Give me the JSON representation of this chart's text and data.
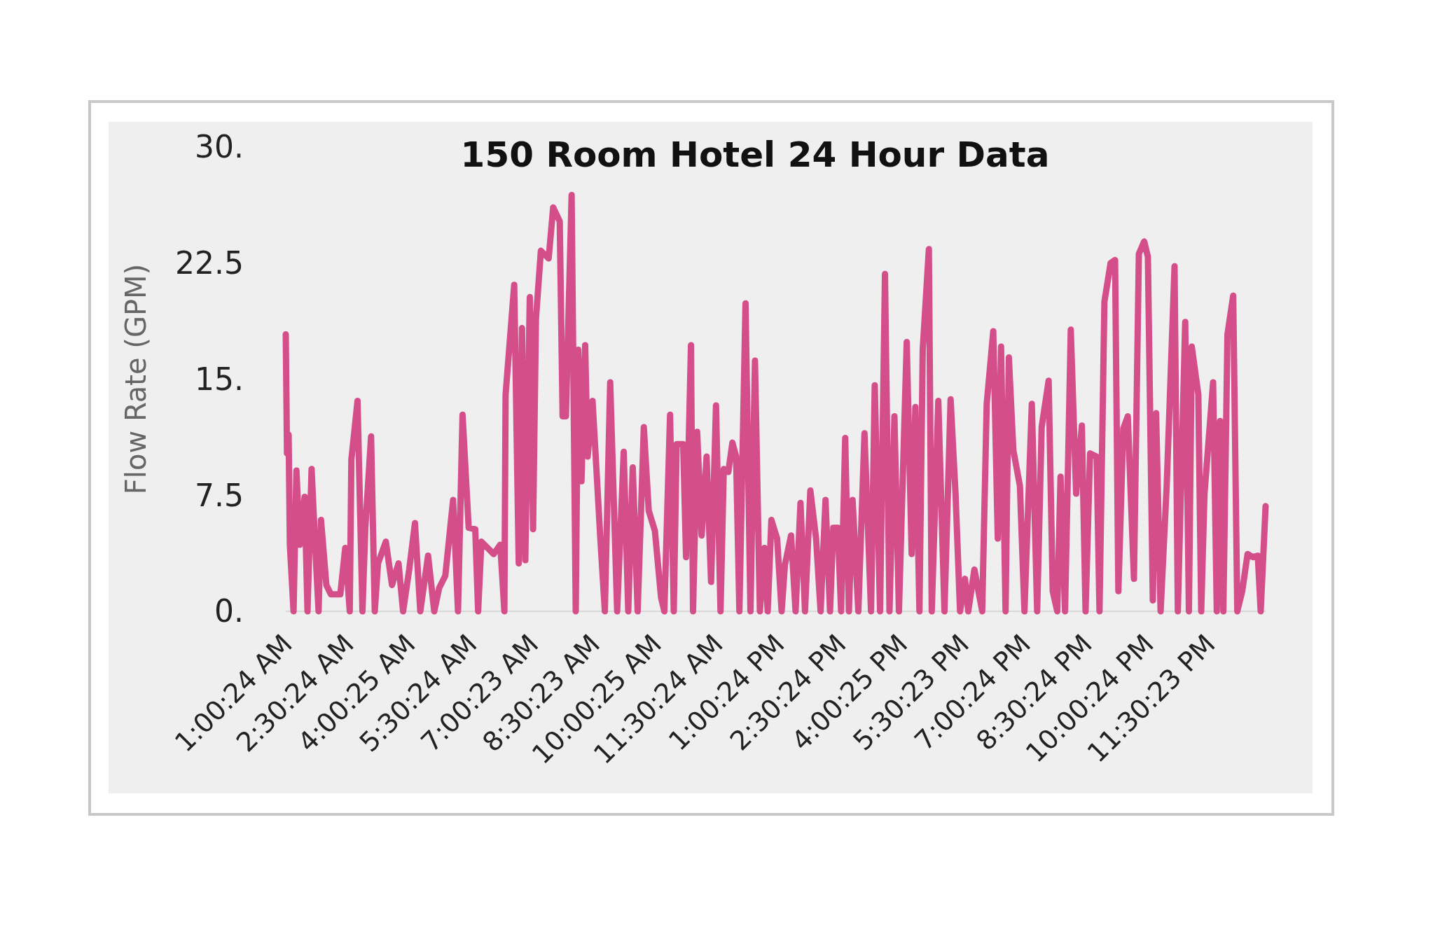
{
  "chart_data": {
    "type": "line",
    "title": "150 Room Hotel 24 Hour Data",
    "ylabel": "Flow Rate (GPM)",
    "xlim": [
      0.97,
      24.86
    ],
    "ylim": [
      0,
      30
    ],
    "xticks": [
      {
        "value": 1.0067,
        "label": "1:00:24 AM"
      },
      {
        "value": 2.5067,
        "label": "2:30:24 AM"
      },
      {
        "value": 4.0069,
        "label": "4:00:25 AM"
      },
      {
        "value": 5.5067,
        "label": "5:30:24 AM"
      },
      {
        "value": 7.0064,
        "label": "7:00:23 AM"
      },
      {
        "value": 8.5064,
        "label": "8:30:23 AM"
      },
      {
        "value": 10.0069,
        "label": "10:00:25 AM"
      },
      {
        "value": 11.5067,
        "label": "11:30:24 AM"
      },
      {
        "value": 13.0067,
        "label": "1:00:24 PM"
      },
      {
        "value": 14.5067,
        "label": "2:30:24 PM"
      },
      {
        "value": 16.0069,
        "label": "4:00:25 PM"
      },
      {
        "value": 17.5064,
        "label": "5:30:23 PM"
      },
      {
        "value": 19.0067,
        "label": "7:00:24 PM"
      },
      {
        "value": 20.5067,
        "label": "8:30:24 PM"
      },
      {
        "value": 22.0067,
        "label": "10:00:24 PM"
      },
      {
        "value": 23.5064,
        "label": "11:30:23 PM"
      }
    ],
    "yticks": [
      {
        "value": 0,
        "label": "0."
      },
      7.5,
      {
        "value": 15,
        "label": "15."
      },
      22.5,
      {
        "value": 30,
        "label": "30."
      }
    ],
    "series": [
      {
        "color": "#d44f8a",
        "x": [
          0.97,
          1.0,
          1.04,
          1.07,
          1.16,
          1.23,
          1.31,
          1.43,
          1.5,
          1.6,
          1.69,
          1.77,
          1.83,
          1.96,
          2.07,
          2.3,
          2.42,
          2.53,
          2.57,
          2.72,
          2.84,
          2.91,
          3.05,
          3.14,
          3.22,
          3.41,
          3.56,
          3.72,
          3.83,
          3.98,
          4.12,
          4.25,
          4.44,
          4.59,
          4.71,
          4.86,
          5.05,
          5.17,
          5.28,
          5.43,
          5.59,
          5.66,
          5.74,
          6.04,
          6.2,
          6.3,
          6.33,
          6.54,
          6.65,
          6.73,
          6.81,
          6.92,
          7.0,
          7.07,
          7.19,
          7.38,
          7.49,
          7.65,
          7.72,
          7.8,
          7.94,
          8.04,
          8.1,
          8.18,
          8.27,
          8.33,
          8.45,
          8.64,
          8.75,
          8.88,
          9.05,
          9.21,
          9.32,
          9.43,
          9.55,
          9.7,
          9.82,
          9.97,
          10.12,
          10.2,
          10.34,
          10.43,
          10.5,
          10.66,
          10.73,
          10.85,
          10.9,
          11.0,
          11.11,
          11.23,
          11.34,
          11.46,
          11.57,
          11.65,
          11.76,
          11.86,
          11.95,
          12.03,
          12.18,
          12.3,
          12.41,
          12.53,
          12.64,
          12.72,
          12.81,
          12.95,
          13.06,
          13.14,
          13.29,
          13.4,
          13.52,
          13.63,
          13.76,
          13.9,
          14.01,
          14.13,
          14.24,
          14.32,
          14.43,
          14.51,
          14.61,
          14.7,
          14.79,
          14.93,
          15.08,
          15.24,
          15.33,
          15.46,
          15.58,
          15.69,
          15.81,
          15.92,
          16.11,
          16.23,
          16.32,
          16.42,
          16.5,
          16.65,
          16.72,
          16.88,
          17.03,
          17.18,
          17.3,
          17.41,
          17.53,
          17.61,
          17.76,
          17.95,
          18.06,
          18.22,
          18.33,
          18.41,
          18.52,
          18.6,
          18.71,
          18.87,
          18.98,
          19.16,
          19.29,
          19.4,
          19.57,
          19.67,
          19.78,
          19.86,
          19.97,
          20.11,
          20.24,
          20.38,
          20.47,
          20.58,
          20.74,
          20.81,
          20.93,
          21.08,
          21.19,
          21.27,
          21.39,
          21.5,
          21.65,
          21.77,
          21.9,
          21.99,
          22.11,
          22.19,
          22.3,
          22.45,
          22.64,
          22.72,
          22.9,
          22.99,
          23.06,
          23.22,
          23.29,
          23.37,
          23.58,
          23.67,
          23.75,
          23.83,
          23.93,
          24.07,
          24.17,
          24.29,
          24.42,
          24.55,
          24.67,
          24.74,
          24.86
        ],
        "values": [
          17.9,
          10.2,
          11.4,
          4.3,
          0,
          9.1,
          4.3,
          7.4,
          0,
          9.2,
          4.1,
          0,
          5.9,
          1.7,
          1.1,
          1.1,
          4.1,
          0,
          9.8,
          13.6,
          0,
          5.4,
          11.3,
          0,
          3.1,
          4.5,
          1.7,
          3.1,
          0,
          2.7,
          5.7,
          0,
          3.6,
          0,
          1.5,
          2.3,
          7.2,
          0,
          12.7,
          5.4,
          5.3,
          0,
          4.5,
          3.7,
          4.3,
          0,
          14.0,
          21.1,
          3.1,
          18.3,
          3.3,
          20.3,
          5.3,
          18.9,
          23.3,
          22.8,
          26.1,
          25.2,
          12.6,
          12.6,
          26.9,
          0,
          16.9,
          8.4,
          17.2,
          10.0,
          13.6,
          4.7,
          0,
          14.8,
          0,
          10.3,
          0,
          9.3,
          0,
          11.9,
          6.5,
          5.2,
          0.9,
          0,
          12.7,
          0,
          10.8,
          10.8,
          3.5,
          17.2,
          0,
          11.6,
          4.9,
          10.0,
          1.9,
          13.3,
          0,
          9.2,
          9.0,
          10.9,
          10.0,
          0,
          19.9,
          0,
          16.2,
          0,
          4.1,
          0,
          5.9,
          4.7,
          0,
          3.0,
          4.9,
          0,
          7.0,
          0,
          7.8,
          4.7,
          0,
          7.2,
          0,
          5.4,
          5.4,
          0,
          11.2,
          0,
          7.2,
          0,
          11.5,
          0,
          14.6,
          0,
          21.8,
          0,
          12.6,
          0,
          17.4,
          3.7,
          13.2,
          0,
          16.9,
          23.4,
          0,
          13.6,
          0,
          13.7,
          7.6,
          0,
          2.1,
          0,
          2.7,
          0,
          13.4,
          18.1,
          4.7,
          17.1,
          0,
          16.4,
          10.4,
          8.1,
          0,
          13.4,
          0,
          11.9,
          14.9,
          1.3,
          0,
          8.7,
          0,
          18.2,
          7.6,
          12.0,
          0,
          10.2,
          10.0,
          0,
          20.0,
          22.5,
          22.7,
          1.3,
          11.8,
          12.6,
          2.1,
          23.1,
          23.9,
          22.9,
          0.7,
          12.8,
          0,
          8.2,
          22.3,
          0,
          18.7,
          0,
          17.1,
          14.0,
          0,
          7.6,
          14.8,
          0,
          12.3,
          0,
          17.9,
          20.4,
          0,
          1.3,
          3.7,
          3.5,
          3.6,
          0,
          6.8
        ]
      }
    ]
  }
}
